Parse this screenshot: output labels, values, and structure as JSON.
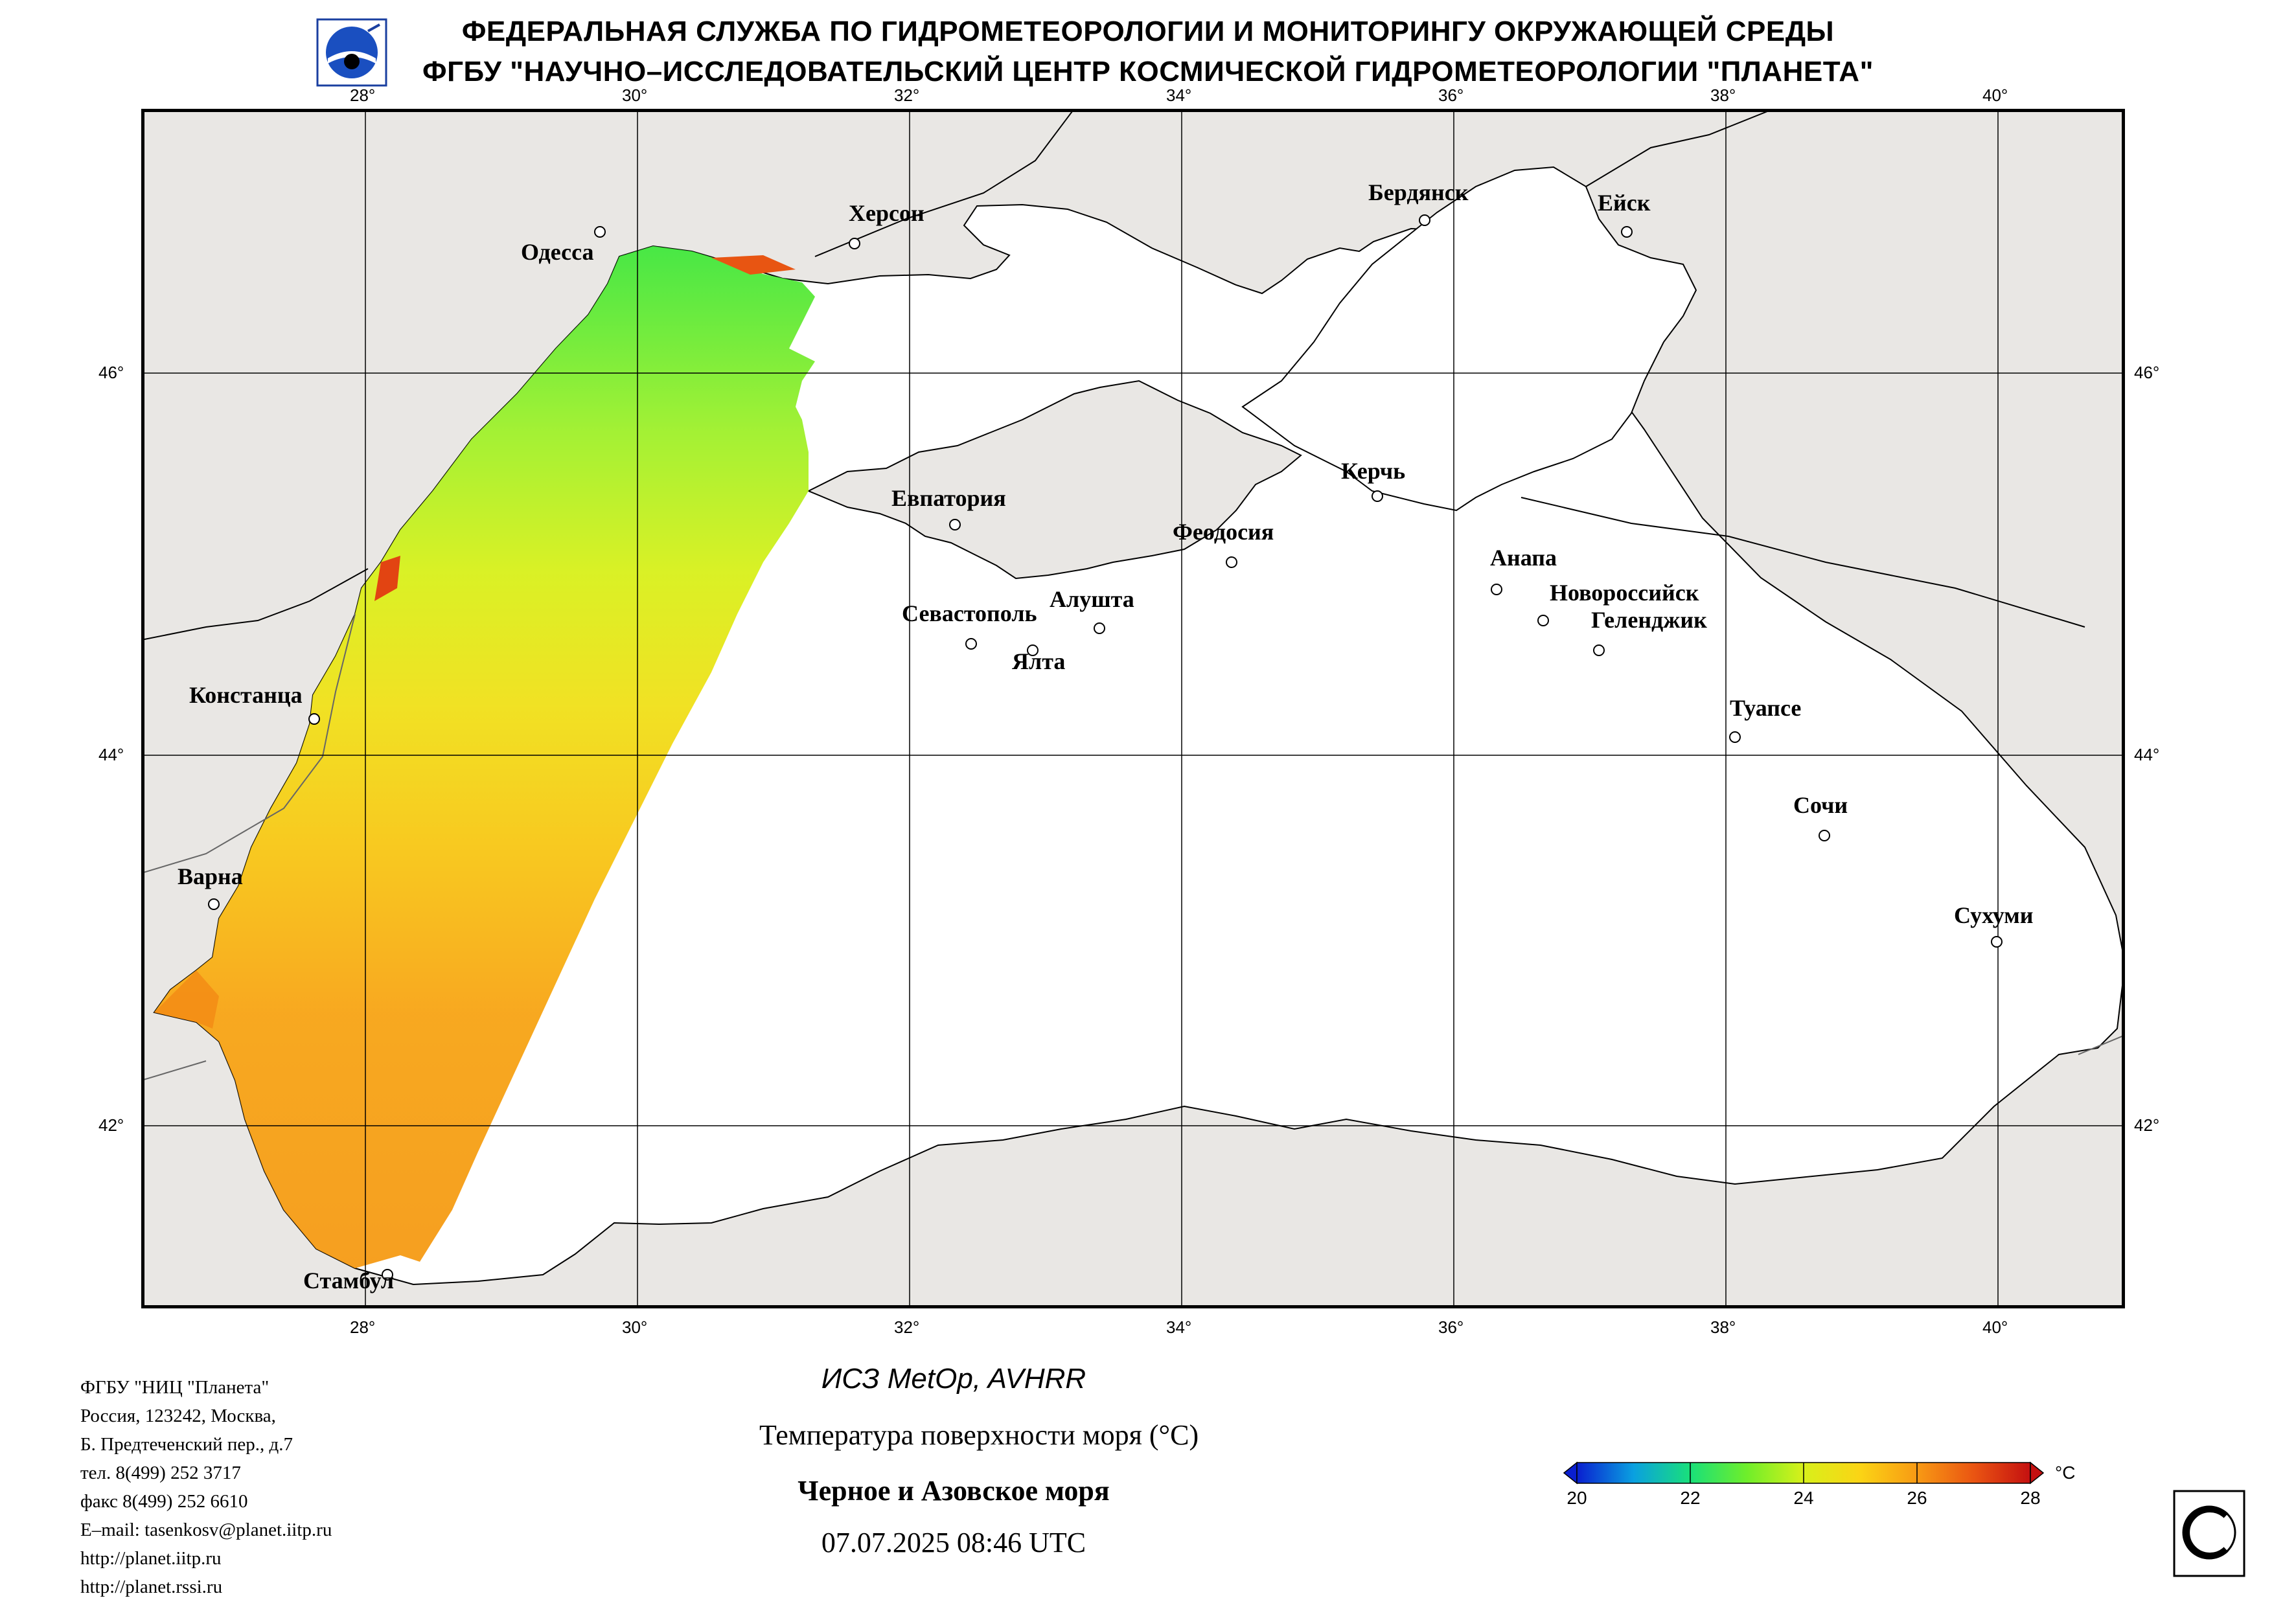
{
  "header": {
    "line1": "ФЕДЕРАЛЬНАЯ СЛУЖБА ПО ГИДРОМЕТЕОРОЛОГИИ И МОНИТОРИНГУ ОКРУЖАЮЩЕЙ СРЕДЫ",
    "line2": "ФГБУ \"НАУЧНО–ИССЛЕДОВАТЕЛЬСКИЙ ЦЕНТР КОСМИЧЕСКОЙ ГИДРОМЕТЕОРОЛОГИИ \"ПЛАНЕТА\""
  },
  "map": {
    "lon_ticks": [
      "28°",
      "30°",
      "32°",
      "34°",
      "36°",
      "38°",
      "40°"
    ],
    "lat_ticks": [
      "46°",
      "44°",
      "42°"
    ],
    "cities": [
      "Херсон",
      "Одесса",
      "Бердянск",
      "Ейск",
      "Керчь",
      "Евпатория",
      "Феодосия",
      "Анапа",
      "Новороссийск",
      "Геленджик",
      "Алушта",
      "Севастополь",
      "Ялта",
      "Констанца",
      "Туапсе",
      "Сочи",
      "Варна",
      "Сухуми",
      "Стамбул"
    ],
    "colors": {
      "land": "#e9e7e4",
      "sea": "#ffffff",
      "coast": "#000000",
      "grid": "#000000"
    }
  },
  "footer": {
    "address": [
      "ФГБУ \"НИЦ \"Планета\"",
      "Россия, 123242, Москва,",
      "Б. Предтеченский пер., д.7",
      "тел. 8(499) 252 3717",
      "факс 8(499) 252 6610",
      "E–mail: tasenkosv@planet.iitp.ru",
      "http://planet.iitp.ru",
      "http://planet.rssi.ru"
    ],
    "satellite": "ИСЗ MetOp, AVHRR",
    "parameter": "Температура поверхности моря (°С)",
    "region": "Черное и Азовское моря",
    "datetime": "07.07.2025 08:46 UTC"
  },
  "colorbar": {
    "min": 20,
    "max": 28,
    "ticks": [
      "20",
      "22",
      "24",
      "26",
      "28"
    ],
    "unit": "°C",
    "colors": [
      "#0a1fd0",
      "#0aa0e0",
      "#19e07a",
      "#6fee2a",
      "#d8f01a",
      "#fbd415",
      "#f89a14",
      "#ea5512",
      "#c41010"
    ]
  }
}
